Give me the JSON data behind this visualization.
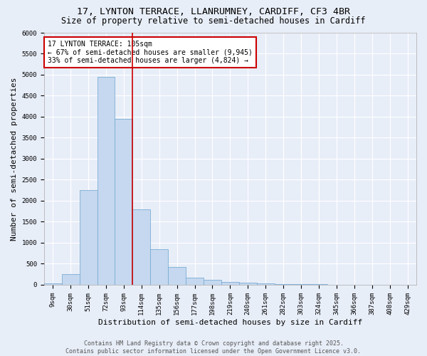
{
  "title_line1": "17, LYNTON TERRACE, LLANRUMNEY, CARDIFF, CF3 4BR",
  "title_line2": "Size of property relative to semi-detached houses in Cardiff",
  "xlabel": "Distribution of semi-detached houses by size in Cardiff",
  "ylabel": "Number of semi-detached properties",
  "categories": [
    "9sqm",
    "30sqm",
    "51sqm",
    "72sqm",
    "93sqm",
    "114sqm",
    "135sqm",
    "156sqm",
    "177sqm",
    "198sqm",
    "219sqm",
    "240sqm",
    "261sqm",
    "282sqm",
    "303sqm",
    "324sqm",
    "345sqm",
    "366sqm",
    "387sqm",
    "408sqm",
    "429sqm"
  ],
  "values": [
    40,
    255,
    2260,
    4950,
    3950,
    1790,
    855,
    415,
    175,
    115,
    75,
    55,
    30,
    20,
    15,
    10,
    8,
    5,
    5,
    3,
    2
  ],
  "bar_color": "#c5d8ef",
  "bar_edge_color": "#7aadd4",
  "background_color": "#e8eef8",
  "grid_color": "#ffffff",
  "vline_color": "#cc0000",
  "vline_x": 4.5,
  "annotation_title": "17 LYNTON TERRACE: 105sqm",
  "annotation_line1": "← 67% of semi-detached houses are smaller (9,945)",
  "annotation_line2": "33% of semi-detached houses are larger (4,824) →",
  "annotation_box_color": "#ffffff",
  "annotation_box_edge": "#cc0000",
  "ylim": [
    0,
    6000
  ],
  "yticks": [
    0,
    500,
    1000,
    1500,
    2000,
    2500,
    3000,
    3500,
    4000,
    4500,
    5000,
    5500,
    6000
  ],
  "footer_line1": "Contains HM Land Registry data © Crown copyright and database right 2025.",
  "footer_line2": "Contains public sector information licensed under the Open Government Licence v3.0.",
  "title_fontsize": 9.5,
  "subtitle_fontsize": 8.5,
  "label_fontsize": 8,
  "tick_fontsize": 6.5,
  "annotation_fontsize": 7,
  "footer_fontsize": 6
}
